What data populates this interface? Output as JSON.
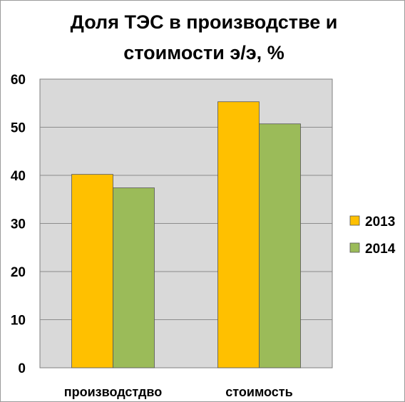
{
  "chart_data": {
    "type": "bar",
    "title_lines": [
      "Доля ТЭС в производстве и",
      "стоимости э/э, %"
    ],
    "categories": [
      "производстдво",
      "стоимость"
    ],
    "series": [
      {
        "name": "2013",
        "values": [
          40.2,
          55.3
        ]
      },
      {
        "name": "2014",
        "values": [
          37.4,
          50.7
        ]
      }
    ],
    "ylim": [
      0,
      60
    ],
    "yticks": [
      0,
      10,
      20,
      30,
      40,
      50,
      60
    ],
    "ytick_labels": [
      "0",
      "10",
      "20",
      "30",
      "40",
      "50",
      "60"
    ],
    "grid": true,
    "legend_position": "right",
    "colors": {
      "series_2013": "#FFC000",
      "series_2014": "#9BBB59",
      "plot_background": "#D9D9D9",
      "gridline": "#8C8C8C",
      "bar_outline": "#555555"
    }
  }
}
